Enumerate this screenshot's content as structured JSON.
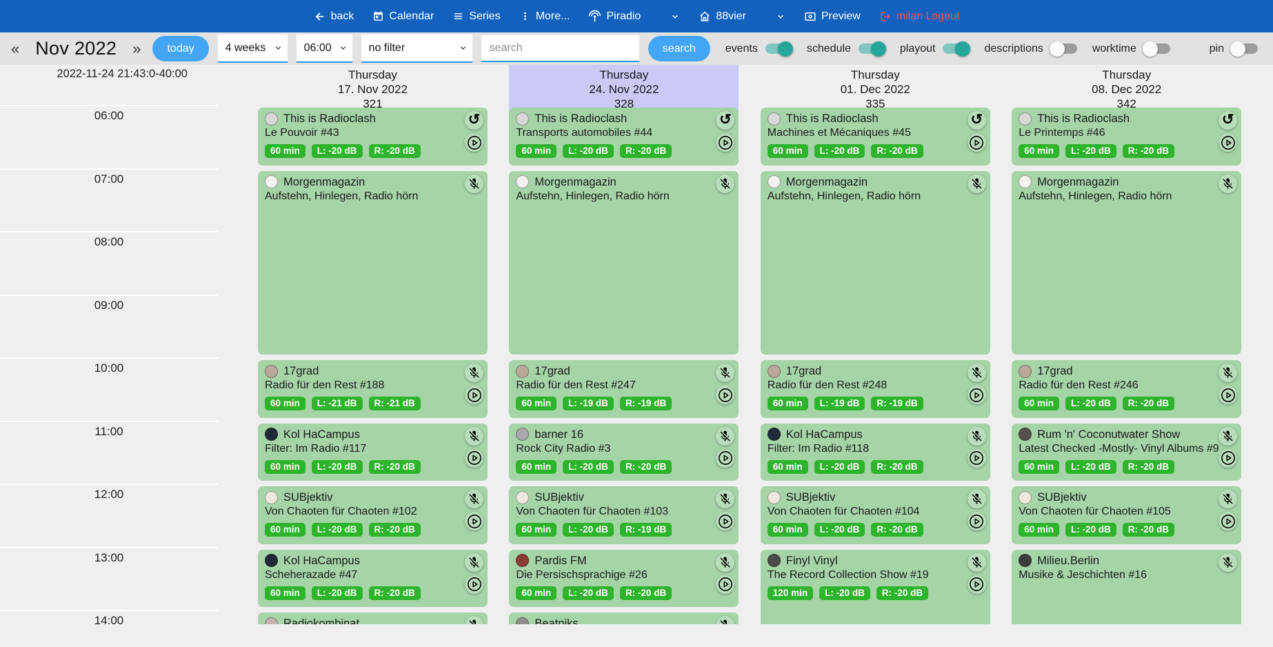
{
  "navbar": {
    "items": [
      {
        "label": "back",
        "icon": "arrow-left-icon"
      },
      {
        "label": "Calendar",
        "icon": "calendar-icon"
      },
      {
        "label": "Series",
        "icon": "series-list-icon"
      },
      {
        "label": "More...",
        "icon": "kebab-menu-icon"
      },
      {
        "label": "Piradio",
        "icon": "antenna-icon"
      },
      {
        "label": "88vier",
        "icon": "home-icon"
      },
      {
        "label": "Preview",
        "icon": "preview-icon"
      },
      {
        "label": "milan Logout",
        "icon": "logout-icon",
        "color": "#ef5350"
      }
    ]
  },
  "toolbar": {
    "prev_label": "«",
    "month_label": "Nov 2022",
    "next_label": "»",
    "today_label": "today",
    "range_select_value": "4 weeks",
    "time_select_value": "06:00",
    "filter_select_value": "no filter",
    "search_placeholder": "search",
    "search_button_label": "search",
    "toggles": [
      {
        "label": "events",
        "state": "on"
      },
      {
        "label": "schedule",
        "state": "on"
      },
      {
        "label": "playout",
        "state": "on"
      },
      {
        "label": "descriptions",
        "state": "off"
      },
      {
        "label": "worktime",
        "state": "off"
      }
    ],
    "pin_toggle": {
      "label": "pin",
      "state": "off"
    }
  },
  "colors": {
    "navbar_blue": "#1161bd",
    "accent_blue": "#42a5f5",
    "underline_blue": "#2196f3",
    "toggle_on_teal": "#26a69a",
    "logout_red": "#ef5350",
    "event_green": "#a5d4a7",
    "badge_green": "#2eb42c",
    "highlight_lavender": "#cbcaf7"
  },
  "calendar": {
    "current_datetime": "2022-11-24 21:43:0-40:00",
    "times": [
      "06:00",
      "07:00",
      "08:00",
      "09:00",
      "10:00",
      "11:00",
      "12:00",
      "13:00",
      "14:00"
    ],
    "columns": [
      {
        "weekday": "Thursday",
        "date": "17. Nov 2022",
        "day_number": "321",
        "highlighted": false,
        "events": [
          {
            "title": "This is Radioclash",
            "subtitle": "Le Pouvoir #43",
            "start": "06:00",
            "duration_min": 60,
            "badges": [
              "60 min",
              "L: -20 dB",
              "R: -20 dB"
            ],
            "avatar_color": "#d8d8d8",
            "has_repeat": true,
            "has_mute": false,
            "has_play": true
          },
          {
            "title": "Morgenmagazin",
            "subtitle": "Aufstehn, Hinlegen, Radio hörn",
            "start": "07:00",
            "duration_min": 180,
            "badges": [],
            "avatar_color": "#f5f3ef",
            "has_repeat": false,
            "has_mute": true,
            "has_play": false
          },
          {
            "title": "17grad",
            "subtitle": "Radio für den Rest #188",
            "start": "10:00",
            "duration_min": 60,
            "badges": [
              "60 min",
              "L: -21 dB",
              "R: -21 dB"
            ],
            "avatar_color": "#b9a99a",
            "has_repeat": false,
            "has_mute": true,
            "has_play": true
          },
          {
            "title": "Kol HaCampus",
            "subtitle": "Filter: Im Radio #117",
            "start": "11:00",
            "duration_min": 60,
            "badges": [
              "60 min",
              "L: -20 dB",
              "R: -20 dB"
            ],
            "avatar_color": "#1f2a38",
            "has_repeat": false,
            "has_mute": true,
            "has_play": true
          },
          {
            "title": "SUBjektiv",
            "subtitle": "Von Chaoten für Chaoten #102",
            "start": "12:00",
            "duration_min": 60,
            "badges": [
              "60 min",
              "L: -20 dB",
              "R: -20 dB"
            ],
            "avatar_color": "#efe9dd",
            "has_repeat": false,
            "has_mute": true,
            "has_play": true
          },
          {
            "title": "Kol HaCampus",
            "subtitle": "Scheherazade #47",
            "start": "13:00",
            "duration_min": 60,
            "badges": [
              "60 min",
              "L: -20 dB",
              "R: -20 dB"
            ],
            "avatar_color": "#1f2a38",
            "has_repeat": false,
            "has_mute": true,
            "has_play": true
          },
          {
            "title": "Radiokombinat",
            "subtitle": "",
            "start": "14:00",
            "duration_min": 60,
            "badges": [],
            "avatar_color": "#c5b4ae",
            "has_repeat": false,
            "has_mute": true,
            "has_play": false
          }
        ]
      },
      {
        "weekday": "Thursday",
        "date": "24. Nov 2022",
        "day_number": "328",
        "highlighted": true,
        "events": [
          {
            "title": "This is Radioclash",
            "subtitle": "Transports automobiles #44",
            "start": "06:00",
            "duration_min": 60,
            "badges": [
              "60 min",
              "L: -20 dB",
              "R: -20 dB"
            ],
            "avatar_color": "#d8d8d8",
            "has_repeat": true,
            "has_mute": false,
            "has_play": true
          },
          {
            "title": "Morgenmagazin",
            "subtitle": "Aufstehn, Hinlegen, Radio hörn",
            "start": "07:00",
            "duration_min": 180,
            "badges": [],
            "avatar_color": "#f5f3ef",
            "has_repeat": false,
            "has_mute": true,
            "has_play": false
          },
          {
            "title": "17grad",
            "subtitle": "Radio für den Rest #247",
            "start": "10:00",
            "duration_min": 60,
            "badges": [
              "60 min",
              "L: -19 dB",
              "R: -19 dB"
            ],
            "avatar_color": "#b9a99a",
            "has_repeat": false,
            "has_mute": true,
            "has_play": true
          },
          {
            "title": "barner 16",
            "subtitle": "Rock City Radio #3",
            "start": "11:00",
            "duration_min": 60,
            "badges": [
              "60 min",
              "L: -20 dB",
              "R: -20 dB"
            ],
            "avatar_color": "#a7a7ad",
            "has_repeat": false,
            "has_mute": true,
            "has_play": true
          },
          {
            "title": "SUBjektiv",
            "subtitle": "Von Chaoten für Chaoten #103",
            "start": "12:00",
            "duration_min": 60,
            "badges": [
              "60 min",
              "L: -20 dB",
              "R: -19 dB"
            ],
            "avatar_color": "#efe9dd",
            "has_repeat": false,
            "has_mute": true,
            "has_play": true
          },
          {
            "title": "Pardis FM",
            "subtitle": "Die Persischsprachige #26",
            "start": "13:00",
            "duration_min": 60,
            "badges": [
              "60 min",
              "L: -20 dB",
              "R: -20 dB"
            ],
            "avatar_color": "#8c3a35",
            "has_repeat": false,
            "has_mute": true,
            "has_play": true
          },
          {
            "title": "Beatniks",
            "subtitle": "",
            "start": "14:00",
            "duration_min": 60,
            "badges": [],
            "avatar_color": "#8e8e8e",
            "has_repeat": false,
            "has_mute": true,
            "has_play": false
          }
        ]
      },
      {
        "weekday": "Thursday",
        "date": "01. Dec 2022",
        "day_number": "335",
        "highlighted": false,
        "events": [
          {
            "title": "This is Radioclash",
            "subtitle": "Machines et Mécaniques #45",
            "start": "06:00",
            "duration_min": 60,
            "badges": [
              "60 min",
              "L: -20 dB",
              "R: -20 dB"
            ],
            "avatar_color": "#d8d8d8",
            "has_repeat": true,
            "has_mute": false,
            "has_play": true
          },
          {
            "title": "Morgenmagazin",
            "subtitle": "Aufstehn, Hinlegen, Radio hörn",
            "start": "07:00",
            "duration_min": 180,
            "badges": [],
            "avatar_color": "#f5f3ef",
            "has_repeat": false,
            "has_mute": true,
            "has_play": false
          },
          {
            "title": "17grad",
            "subtitle": "Radio für den Rest #248",
            "start": "10:00",
            "duration_min": 60,
            "badges": [
              "60 min",
              "L: -19 dB",
              "R: -19 dB"
            ],
            "avatar_color": "#b9a99a",
            "has_repeat": false,
            "has_mute": true,
            "has_play": true
          },
          {
            "title": "Kol HaCampus",
            "subtitle": "Filter: Im Radio #118",
            "start": "11:00",
            "duration_min": 60,
            "badges": [
              "60 min",
              "L: -20 dB",
              "R: -20 dB"
            ],
            "avatar_color": "#1f2a38",
            "has_repeat": false,
            "has_mute": true,
            "has_play": true
          },
          {
            "title": "SUBjektiv",
            "subtitle": "Von Chaoten für Chaoten #104",
            "start": "12:00",
            "duration_min": 60,
            "badges": [
              "60 min",
              "L: -20 dB",
              "R: -20 dB"
            ],
            "avatar_color": "#efe9dd",
            "has_repeat": false,
            "has_mute": true,
            "has_play": true
          },
          {
            "title": "Finyl Vinyl",
            "subtitle": "The Record Collection Show #19",
            "start": "13:00",
            "duration_min": 120,
            "badges": [
              "120 min",
              "L: -20 dB",
              "R: -20 dB"
            ],
            "avatar_color": "#4a4a4a",
            "has_repeat": false,
            "has_mute": true,
            "has_play": true
          }
        ]
      },
      {
        "weekday": "Thursday",
        "date": "08. Dec 2022",
        "day_number": "342",
        "highlighted": false,
        "events": [
          {
            "title": "This is Radioclash",
            "subtitle": "Le Printemps #46",
            "start": "06:00",
            "duration_min": 60,
            "badges": [
              "60 min",
              "L: -20 dB",
              "R: -20 dB"
            ],
            "avatar_color": "#d8d8d8",
            "has_repeat": true,
            "has_mute": false,
            "has_play": true
          },
          {
            "title": "Morgenmagazin",
            "subtitle": "Aufstehn, Hinlegen, Radio hörn",
            "start": "07:00",
            "duration_min": 180,
            "badges": [],
            "avatar_color": "#f5f3ef",
            "has_repeat": false,
            "has_mute": true,
            "has_play": false
          },
          {
            "title": "17grad",
            "subtitle": "Radio für den Rest #246",
            "start": "10:00",
            "duration_min": 60,
            "badges": [
              "60 min",
              "L: -20 dB",
              "R: -20 dB"
            ],
            "avatar_color": "#b9a99a",
            "has_repeat": false,
            "has_mute": true,
            "has_play": true
          },
          {
            "title": "Rum 'n' Coconutwater Show",
            "subtitle": "Latest Checked -Mostly- Vinyl Albums #9",
            "start": "11:00",
            "duration_min": 60,
            "badges": [
              "60 min",
              "L: -20 dB",
              "R: -20 dB"
            ],
            "avatar_color": "#55514a",
            "has_repeat": false,
            "has_mute": true,
            "has_play": true
          },
          {
            "title": "SUBjektiv",
            "subtitle": "Von Chaoten für Chaoten #105",
            "start": "12:00",
            "duration_min": 60,
            "badges": [
              "60 min",
              "L: -20 dB",
              "R: -20 dB"
            ],
            "avatar_color": "#efe9dd",
            "has_repeat": false,
            "has_mute": true,
            "has_play": true
          },
          {
            "title": "Milieu.Berlin",
            "subtitle": "Musike & Jeschichten #16",
            "start": "13:00",
            "duration_min": 120,
            "badges": [],
            "avatar_color": "#3c3c3c",
            "has_repeat": false,
            "has_mute": true,
            "has_play": false
          }
        ]
      }
    ]
  }
}
